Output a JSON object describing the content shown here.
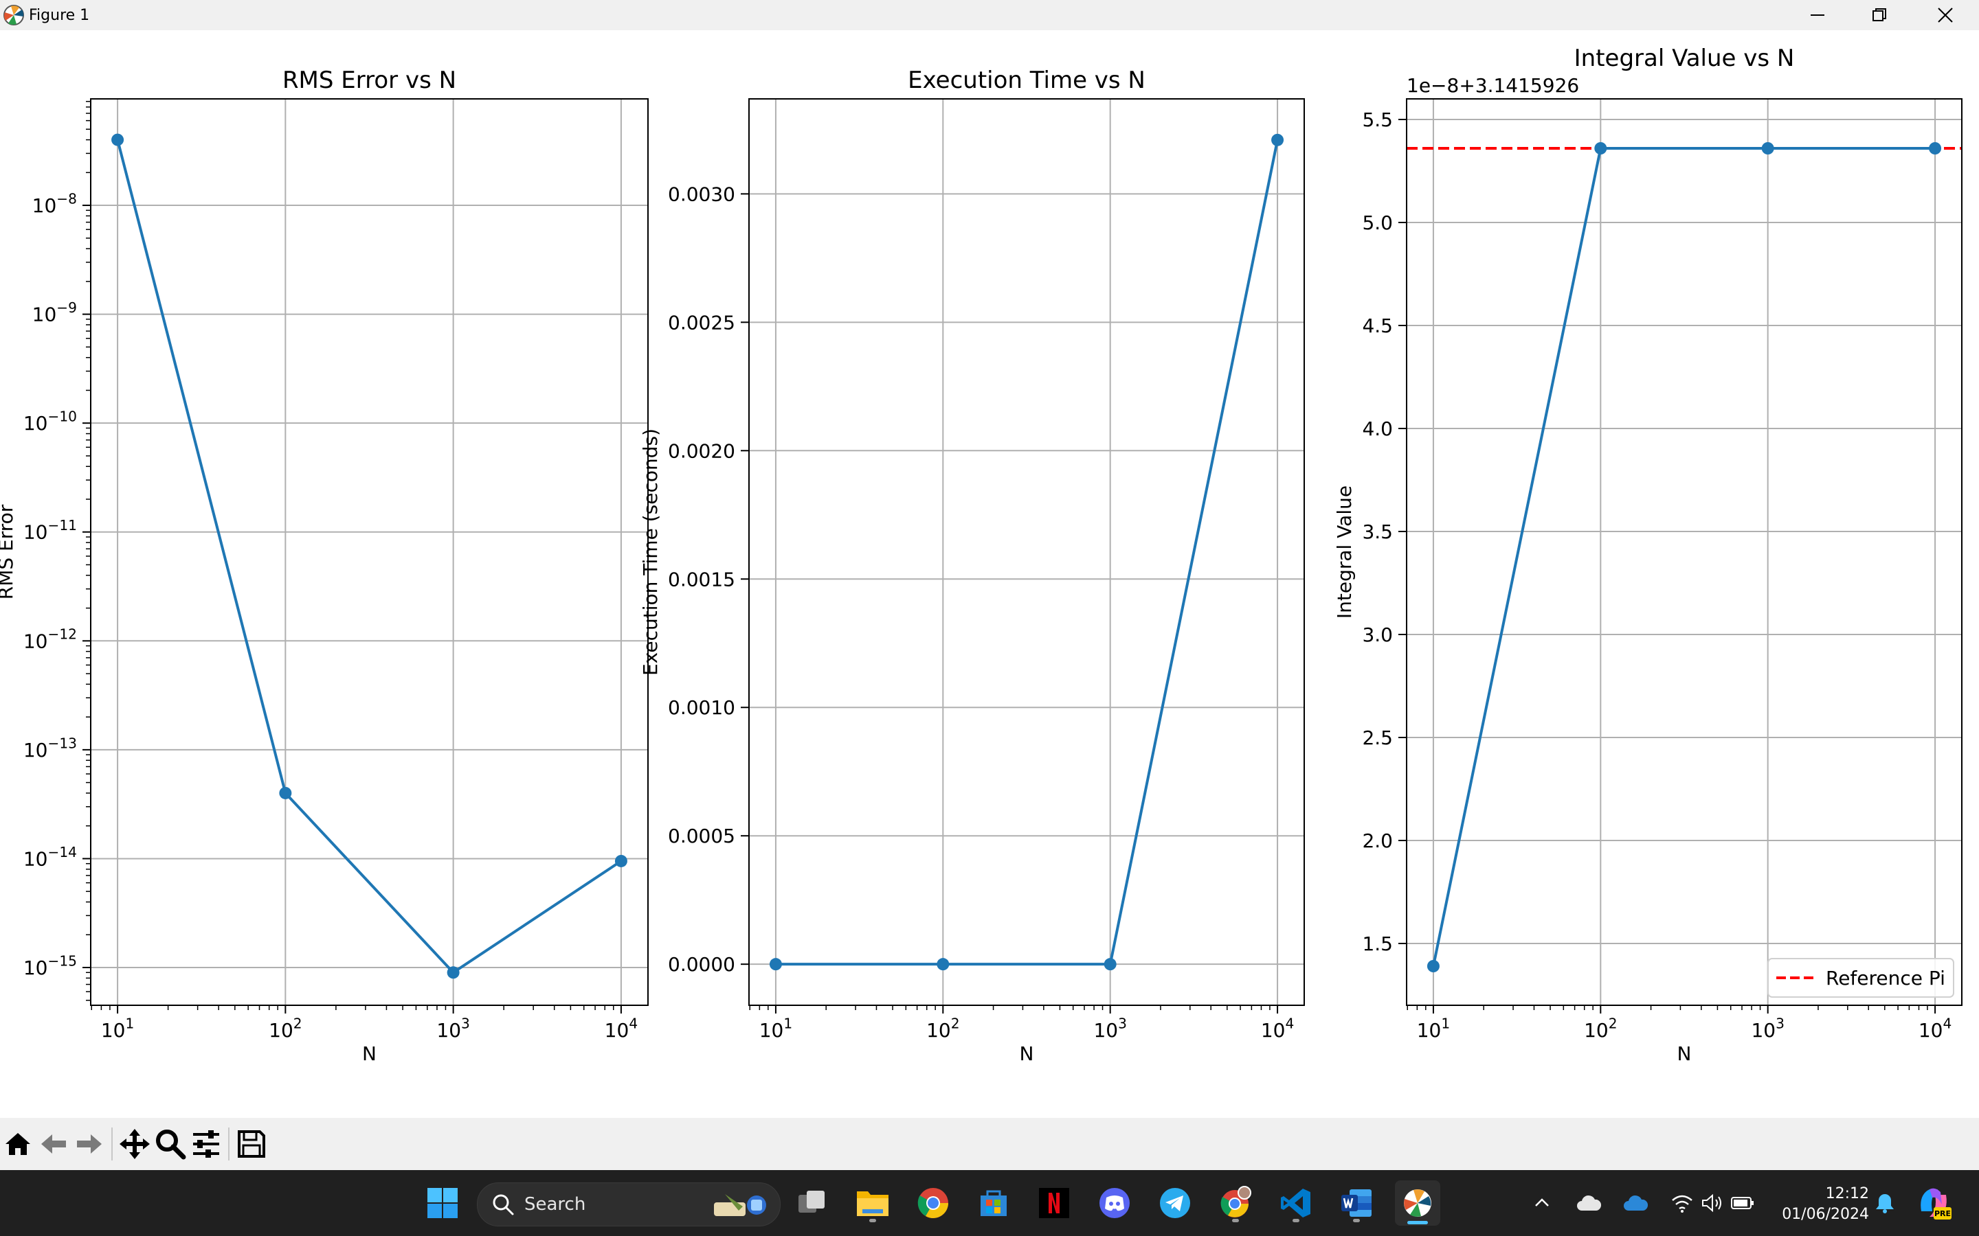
{
  "window": {
    "title": "Figure 1",
    "controls": [
      "minimize",
      "maximize",
      "close"
    ]
  },
  "colors": {
    "series": "#1f77b4",
    "reference": "#ff0000",
    "grid": "#b0b0b0",
    "window_bg": "#f0f0f0",
    "taskbar_bg": "#202020"
  },
  "chart_data": [
    {
      "type": "line",
      "title": "RMS Error vs N",
      "xlabel": "N",
      "ylabel": "RMS Error",
      "xscale": "log",
      "yscale": "log",
      "x": [
        10,
        100,
        1000,
        10000
      ],
      "x_ticks": [
        10,
        100,
        1000,
        10000
      ],
      "x_tick_labels": [
        "10^1",
        "10^2",
        "10^3",
        "10^4"
      ],
      "ylim": [
        4.5e-16,
        9.5e-08
      ],
      "y_ticks": [
        1e-08,
        1e-09,
        1e-10,
        1e-11,
        1e-12,
        1e-13,
        1e-14,
        1e-15
      ],
      "y_tick_labels": [
        "10^−8",
        "10^−9",
        "10^−10",
        "10^−11",
        "10^−12",
        "10^−13",
        "10^−14",
        "10^−15"
      ],
      "grid": true,
      "series": [
        {
          "values": [
            4e-08,
            4e-14,
            9e-16,
            9.5e-15
          ],
          "color": "#1f77b4",
          "marker": "circle"
        }
      ]
    },
    {
      "type": "line",
      "title": "Execution Time vs N",
      "xlabel": "N",
      "ylabel": "Execution Time (seconds)",
      "xscale": "log",
      "yscale": "linear",
      "x": [
        10,
        100,
        1000,
        10000
      ],
      "x_ticks": [
        10,
        100,
        1000,
        10000
      ],
      "x_tick_labels": [
        "10^1",
        "10^2",
        "10^3",
        "10^4"
      ],
      "ylim": [
        -0.00016,
        0.00337
      ],
      "y_ticks": [
        0,
        0.0005,
        0.001,
        0.0015,
        0.002,
        0.0025,
        0.003
      ],
      "y_tick_labels": [
        "0.0000",
        "0.0005",
        "0.0010",
        "0.0015",
        "0.0020",
        "0.0025",
        "0.0030"
      ],
      "grid": true,
      "series": [
        {
          "values": [
            0,
            0,
            0,
            0.00321
          ],
          "color": "#1f77b4",
          "marker": "circle"
        }
      ]
    },
    {
      "type": "line",
      "title": "Integral Value vs N",
      "xlabel": "N",
      "ylabel": "Integral Value",
      "offset_text": "1e−8+3.1415926",
      "xscale": "log",
      "yscale": "linear",
      "x": [
        10,
        100,
        1000,
        10000
      ],
      "x_ticks": [
        10,
        100,
        1000,
        10000
      ],
      "x_tick_labels": [
        "10^1",
        "10^2",
        "10^3",
        "10^4"
      ],
      "ylim": [
        1.2,
        5.6
      ],
      "y_ticks": [
        1.5,
        2.0,
        2.5,
        3.0,
        3.5,
        4.0,
        4.5,
        5.0,
        5.5
      ],
      "y_tick_labels": [
        "1.5",
        "2.0",
        "2.5",
        "3.0",
        "3.5",
        "4.0",
        "4.5",
        "5.0",
        "5.5"
      ],
      "grid": true,
      "series": [
        {
          "values": [
            1.39,
            5.36,
            5.36,
            5.36
          ],
          "color": "#1f77b4",
          "marker": "circle"
        }
      ],
      "reference_line": {
        "name": "Reference Pi",
        "value": 5.36,
        "color": "#ff0000",
        "style": "dashed"
      },
      "legend": {
        "entries": [
          "Reference Pi"
        ],
        "placement": "lower-right"
      }
    }
  ],
  "toolbar": {
    "buttons": [
      "home-icon",
      "back-arrow-icon",
      "forward-arrow-icon",
      "pan-icon",
      "zoom-icon",
      "configure-subplots-icon",
      "save-icon"
    ]
  },
  "taskbar": {
    "search_label": "Search",
    "apps": [
      "windows-start-icon",
      "task-view-icon",
      "file-explorer-icon",
      "chrome-icon",
      "microsoft-store-icon",
      "netflix-icon",
      "discord-icon",
      "telegram-icon",
      "chrome-profile-icon",
      "vscode-icon",
      "word-icon",
      "matplotlib-icon"
    ],
    "time": "12:12",
    "date": "01/06/2024",
    "copilot_badge": "PRE"
  }
}
